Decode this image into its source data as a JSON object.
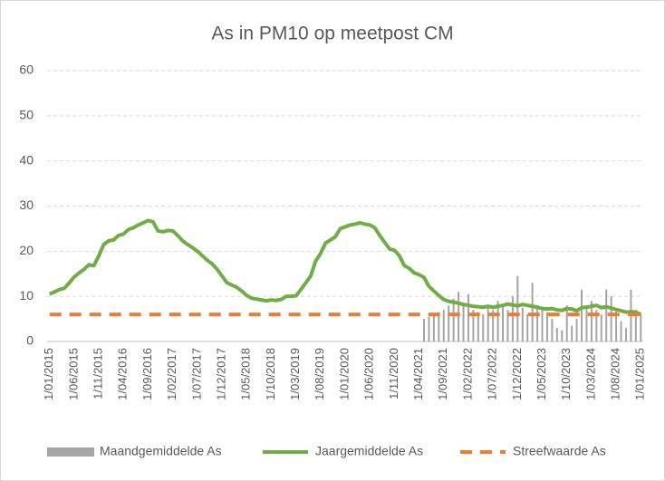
{
  "chart_data": {
    "type": "bar-line",
    "title": "As in PM10 op meetpost CM",
    "categories": [
      "1/01/2015",
      null,
      null,
      null,
      null,
      "1/06/2015",
      null,
      null,
      null,
      null,
      "1/11/2015",
      null,
      null,
      null,
      null,
      "1/04/2016",
      null,
      null,
      null,
      null,
      "1/09/2016",
      null,
      null,
      null,
      null,
      "1/02/2017",
      null,
      null,
      null,
      null,
      "1/07/2017",
      null,
      null,
      null,
      null,
      "1/12/2017",
      null,
      null,
      null,
      null,
      "1/05/2018",
      null,
      null,
      null,
      null,
      "1/10/2018",
      null,
      null,
      null,
      null,
      "1/03/2019",
      null,
      null,
      null,
      null,
      "1/08/2019",
      null,
      null,
      null,
      null,
      "1/01/2020",
      null,
      null,
      null,
      null,
      "1/06/2020",
      null,
      null,
      null,
      null,
      "1/11/2020",
      null,
      null,
      null,
      null,
      "1/04/2021",
      null,
      null,
      null,
      null,
      "1/09/2021",
      null,
      null,
      null,
      null,
      "1/02/2022",
      null,
      null,
      null,
      null,
      "1/07/2022",
      null,
      null,
      null,
      null,
      "1/12/2022",
      null,
      null,
      null,
      null,
      "1/05/2023",
      null,
      null,
      null,
      null,
      "1/10/2023",
      null,
      null,
      null,
      null,
      "1/03/2024",
      null,
      null,
      null,
      null,
      "1/08/2024",
      null,
      null,
      null,
      null,
      "1/01/2025"
    ],
    "series": [
      {
        "name": "Maandgemiddelde As",
        "kind": "bar",
        "color": "#a5a5a5",
        "values": [
          null,
          null,
          null,
          null,
          null,
          null,
          null,
          null,
          null,
          null,
          null,
          null,
          null,
          null,
          null,
          null,
          null,
          null,
          null,
          null,
          null,
          null,
          null,
          null,
          null,
          null,
          null,
          null,
          null,
          null,
          null,
          null,
          null,
          null,
          null,
          null,
          null,
          null,
          null,
          null,
          null,
          null,
          null,
          null,
          null,
          null,
          null,
          null,
          null,
          null,
          null,
          null,
          null,
          null,
          null,
          null,
          null,
          null,
          null,
          null,
          null,
          null,
          null,
          null,
          null,
          null,
          null,
          null,
          null,
          null,
          null,
          null,
          null,
          null,
          null,
          null,
          5,
          5.5,
          6,
          6.5,
          7,
          8,
          9.5,
          11,
          8,
          10.5,
          7,
          6.5,
          6,
          7.5,
          7,
          9,
          8,
          7,
          10,
          14.5,
          7.5,
          6,
          13,
          8,
          7,
          6.5,
          5,
          3,
          2.5,
          8,
          3.5,
          5,
          11.5,
          8,
          9,
          7,
          6,
          11.5,
          10,
          7,
          4.5,
          3,
          11.5,
          7,
          6
        ]
      },
      {
        "name": "Jaargemiddelde As",
        "kind": "line",
        "color": "#70ad47",
        "values": [
          10.5,
          11,
          11.5,
          11.8,
          13,
          14.3,
          15.2,
          16,
          17,
          16.8,
          19,
          21.5,
          22.3,
          22.5,
          23.5,
          23.8,
          24.8,
          25.2,
          25.8,
          26.3,
          26.8,
          26.5,
          24.5,
          24.3,
          24.6,
          24.5,
          23.5,
          22.3,
          21.5,
          20.8,
          20,
          19,
          18,
          17.2,
          16,
          14.5,
          13,
          12.5,
          12,
          11.2,
          10.2,
          9.6,
          9.4,
          9.2,
          9,
          9.2,
          9.1,
          9.3,
          10,
          10,
          10.1,
          11.5,
          13,
          14.5,
          17.8,
          19.5,
          21.8,
          22.5,
          23.2,
          25,
          25.4,
          25.8,
          26,
          26.3,
          26,
          25.8,
          25.2,
          23.5,
          22,
          20.5,
          20.2,
          19,
          16.8,
          16.2,
          15.2,
          14.8,
          14.2,
          12.2,
          11.2,
          10.2,
          9.3,
          8.9,
          8.7,
          8.5,
          8.2,
          8,
          7.8,
          7.7,
          7.6,
          7.8,
          7.6,
          7.8,
          8,
          8.3,
          8.1,
          7.9,
          8.2,
          8,
          7.8,
          7.6,
          7.3,
          7.2,
          7.3,
          7,
          6.9,
          7.3,
          7.2,
          6.8,
          7.5,
          7.6,
          7.8,
          8,
          7.5,
          7.7,
          7.4,
          7.1,
          6.8,
          6.5,
          6.6,
          6.5,
          6
        ]
      },
      {
        "name": "Streefwaarde As",
        "kind": "dashed-line",
        "color": "#ed7d31",
        "values": [
          6,
          6,
          6,
          6,
          6,
          6,
          6,
          6,
          6,
          6,
          6,
          6,
          6,
          6,
          6,
          6,
          6,
          6,
          6,
          6,
          6,
          6,
          6,
          6,
          6,
          6,
          6,
          6,
          6,
          6,
          6,
          6,
          6,
          6,
          6,
          6,
          6,
          6,
          6,
          6,
          6,
          6,
          6,
          6,
          6,
          6,
          6,
          6,
          6,
          6,
          6,
          6,
          6,
          6,
          6,
          6,
          6,
          6,
          6,
          6,
          6,
          6,
          6,
          6,
          6,
          6,
          6,
          6,
          6,
          6,
          6,
          6,
          6,
          6,
          6,
          6,
          6,
          6,
          6,
          6,
          6,
          6,
          6,
          6,
          6,
          6,
          6,
          6,
          6,
          6,
          6,
          6,
          6,
          6,
          6,
          6,
          6,
          6,
          6,
          6,
          6,
          6,
          6,
          6,
          6,
          6,
          6,
          6,
          6,
          6,
          6,
          6,
          6,
          6,
          6,
          6,
          6,
          6,
          6,
          6,
          6
        ]
      }
    ],
    "ylim": [
      0,
      60
    ],
    "yticks": [
      0,
      10,
      20,
      30,
      40,
      50,
      60
    ],
    "grid": true,
    "legend": "bottom"
  }
}
